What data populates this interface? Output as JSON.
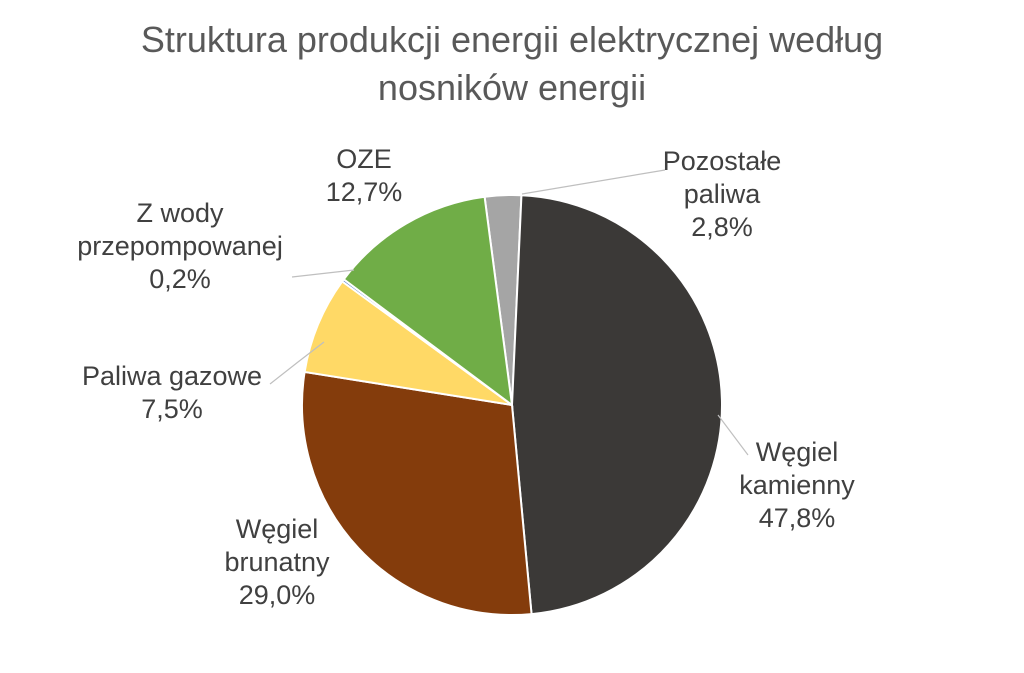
{
  "chart_data": {
    "type": "pie",
    "title_lines": [
      "Struktura produkcji energii elektrycznej według",
      "nosników energii"
    ],
    "slices": [
      {
        "lines": [
          "Pozostałe",
          "paliwa"
        ],
        "pct": "2,8%",
        "value": 2.8,
        "color": "#a5a5a5"
      },
      {
        "lines": [
          "Węgiel",
          "kamienny"
        ],
        "pct": "47,8%",
        "value": 47.8,
        "color": "#3b3937"
      },
      {
        "lines": [
          "Węgiel",
          "brunatny"
        ],
        "pct": "29,0%",
        "value": 29.0,
        "color": "#843c0c"
      },
      {
        "lines": [
          "Paliwa gazowe"
        ],
        "pct": "7,5%",
        "value": 7.5,
        "color": "#ffd966"
      },
      {
        "lines": [
          "Z wody",
          "przepompowanej"
        ],
        "pct": "0,2%",
        "value": 0.2,
        "color": "#4472c4"
      },
      {
        "lines": [
          "OZE"
        ],
        "pct": "12,7%",
        "value": 12.7,
        "color": "#70ad47"
      }
    ]
  }
}
